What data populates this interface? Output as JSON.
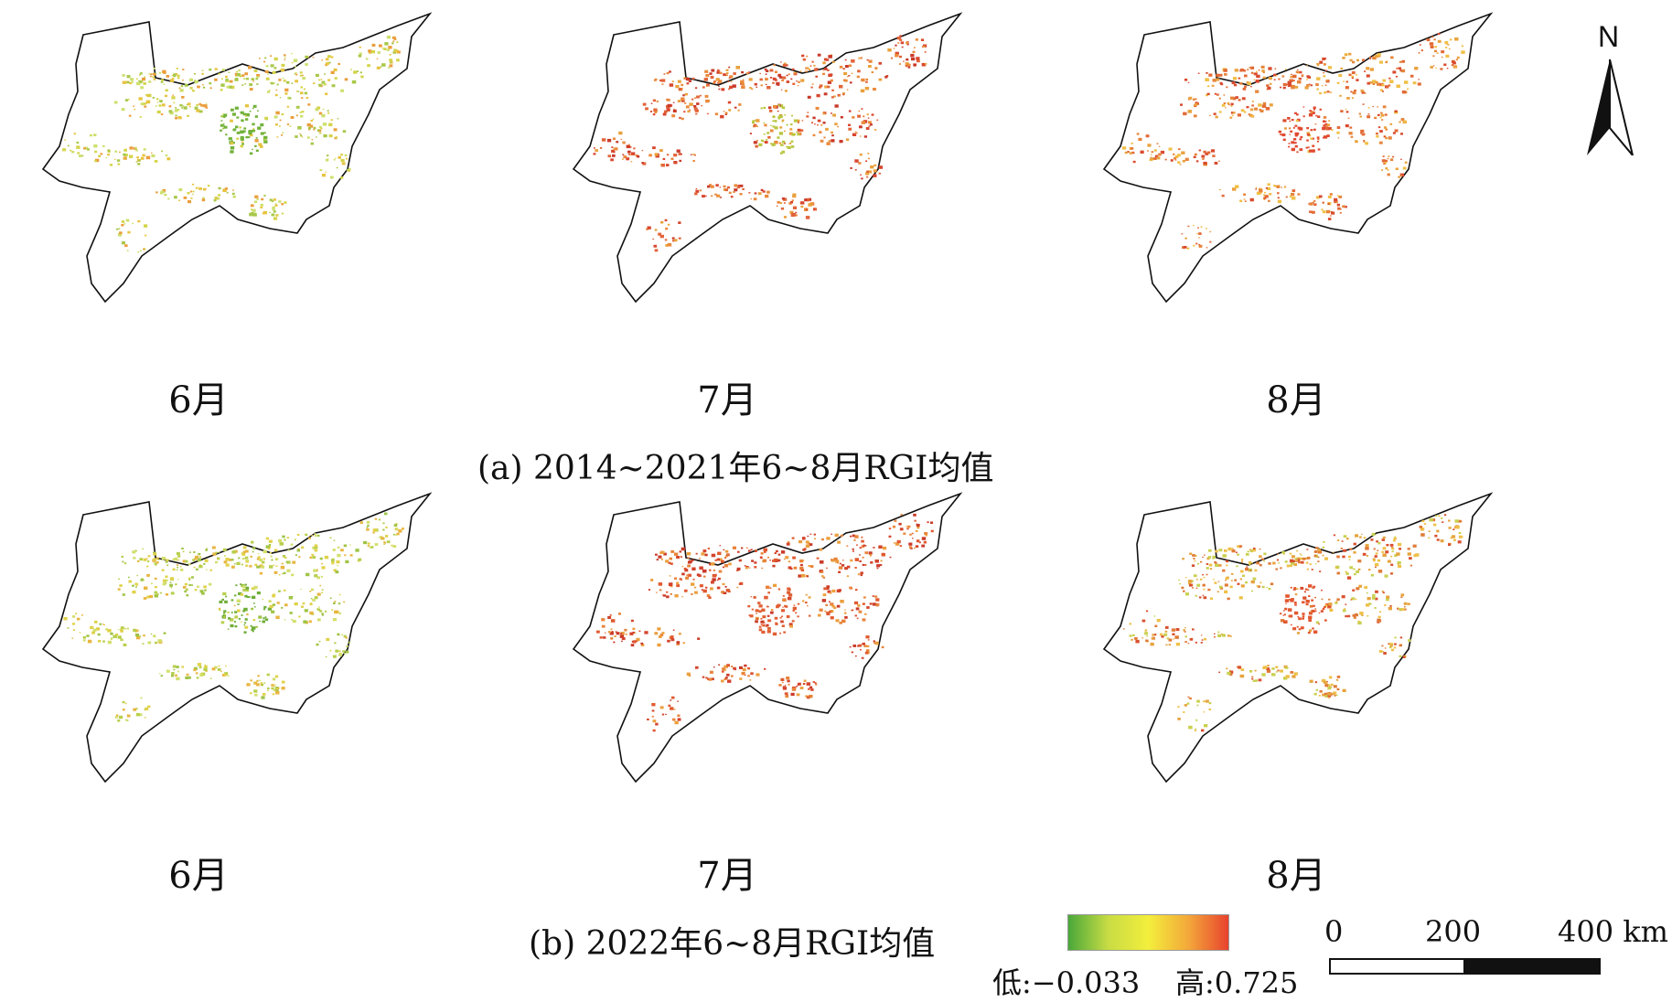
{
  "panels": [
    {
      "month": "6月",
      "palette": [
        "#a9c84a",
        "#d4d44a",
        "#e7c441",
        "#ea9e3c",
        "#cde06e"
      ],
      "core": "#72b23a"
    },
    {
      "month": "7月",
      "palette": [
        "#e2653a",
        "#ea8a3c",
        "#d9472d",
        "#e9a13c",
        "#c93a2a"
      ],
      "core": "#b9c63f"
    },
    {
      "month": "8月",
      "palette": [
        "#e7853b",
        "#e36a35",
        "#eaa23e",
        "#d94b2e",
        "#f0bf45"
      ],
      "core": "#e04a30"
    },
    {
      "month": "6月",
      "palette": [
        "#b8cf4c",
        "#e0d24a",
        "#e9b540",
        "#a0c446",
        "#d3df6c"
      ],
      "core": "#6fae38"
    },
    {
      "month": "7月",
      "palette": [
        "#e0592f",
        "#e8843a",
        "#d4442c",
        "#eb9f3e",
        "#ca3b29"
      ],
      "core": "#e05f33"
    },
    {
      "month": "8月",
      "palette": [
        "#e6a43e",
        "#e07b38",
        "#c9d050",
        "#eec048",
        "#d9502f"
      ],
      "core": "#e2572f"
    }
  ],
  "captions": {
    "a": "(a) 2014~2021年6~8月RGI均值",
    "b": "(b) 2022年6~8月RGI均值"
  },
  "legend": {
    "low": "低:−0.033",
    "high": "高:0.725",
    "colors": [
      "#4aa83a",
      "#c8dc44",
      "#f3ee3c",
      "#f3a83a",
      "#e8432e"
    ]
  },
  "scale": {
    "labels": [
      "0",
      "200",
      "400 km"
    ]
  },
  "north": {
    "label": "N"
  }
}
